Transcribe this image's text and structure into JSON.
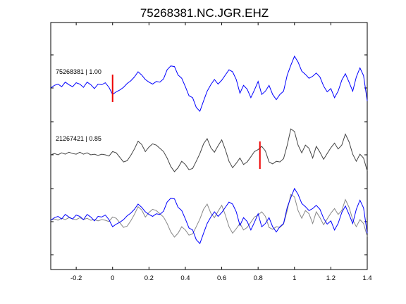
{
  "chart_data": {
    "type": "line",
    "title": "75268381.NC.JGR.EHZ",
    "xlabel": "",
    "ylabel": "",
    "xlim": [
      -0.34,
      1.4
    ],
    "xticks": [
      -0.2,
      0,
      0.2,
      0.4,
      0.6,
      0.8,
      1,
      1.2,
      1.4
    ],
    "xtick_labels": [
      "-0.2",
      "0",
      "0.2",
      "0.4",
      "0.6",
      "0.8",
      "1",
      "1.2",
      "1.4"
    ],
    "grid": false,
    "legend": "none",
    "colors": {
      "primary": "#0000ff",
      "secondary": "#444444",
      "overlay_secondary": "#888888",
      "pick": "#ee0000"
    },
    "traces": [
      {
        "label": "75268381 | 1.00",
        "color": "#0000ff",
        "pick_time": 0.0,
        "x": [
          -0.34,
          -0.32,
          -0.3,
          -0.28,
          -0.26,
          -0.24,
          -0.22,
          -0.2,
          -0.18,
          -0.16,
          -0.14,
          -0.12,
          -0.1,
          -0.08,
          -0.06,
          -0.04,
          -0.02,
          0.0,
          0.02,
          0.04,
          0.06,
          0.08,
          0.1,
          0.12,
          0.14,
          0.16,
          0.18,
          0.2,
          0.22,
          0.24,
          0.26,
          0.28,
          0.3,
          0.32,
          0.34,
          0.36,
          0.38,
          0.4,
          0.42,
          0.44,
          0.46,
          0.48,
          0.5,
          0.52,
          0.54,
          0.56,
          0.58,
          0.6,
          0.62,
          0.64,
          0.66,
          0.68,
          0.7,
          0.72,
          0.74,
          0.76,
          0.78,
          0.8,
          0.82,
          0.84,
          0.86,
          0.88,
          0.9,
          0.92,
          0.94,
          0.96,
          0.98,
          1.0,
          1.02,
          1.04,
          1.06,
          1.08,
          1.1,
          1.12,
          1.14,
          1.16,
          1.18,
          1.2,
          1.22,
          1.24,
          1.26,
          1.28,
          1.3,
          1.32,
          1.34,
          1.36,
          1.38,
          1.4
        ],
        "y": [
          0.0,
          0.08,
          0.12,
          0.04,
          0.18,
          0.1,
          0.04,
          0.16,
          0.12,
          0.02,
          0.18,
          0.1,
          -0.02,
          0.12,
          0.1,
          0.16,
          0.02,
          -0.2,
          -0.12,
          -0.06,
          0.02,
          0.14,
          0.22,
          0.34,
          0.5,
          0.4,
          0.26,
          0.18,
          0.12,
          0.2,
          0.18,
          0.28,
          0.56,
          0.68,
          0.66,
          0.4,
          0.3,
          0.04,
          -0.24,
          -0.3,
          -0.6,
          -0.72,
          -0.4,
          -0.1,
          0.1,
          0.26,
          0.12,
          0.24,
          0.4,
          0.56,
          0.5,
          0.26,
          -0.16,
          0.08,
          -0.04,
          -0.3,
          -0.06,
          0.2,
          -0.2,
          -0.1,
          0.08,
          -0.2,
          -0.36,
          -0.2,
          -0.1,
          0.4,
          0.7,
          0.98,
          0.8,
          0.52,
          0.42,
          0.3,
          0.36,
          0.46,
          0.34,
          0.06,
          -0.12,
          -0.02,
          -0.3,
          -0.1,
          0.24,
          0.44,
          0.18,
          -0.1,
          0.34,
          0.62,
          0.38,
          -0.4
        ]
      },
      {
        "label": "21267421 | 0.85",
        "color": "#444444",
        "pick_time": 0.81,
        "x": [
          -0.34,
          -0.32,
          -0.3,
          -0.28,
          -0.26,
          -0.24,
          -0.22,
          -0.2,
          -0.18,
          -0.16,
          -0.14,
          -0.12,
          -0.1,
          -0.08,
          -0.06,
          -0.04,
          -0.02,
          0.0,
          0.02,
          0.04,
          0.06,
          0.08,
          0.1,
          0.12,
          0.14,
          0.16,
          0.18,
          0.2,
          0.22,
          0.24,
          0.26,
          0.28,
          0.3,
          0.32,
          0.34,
          0.36,
          0.38,
          0.4,
          0.42,
          0.44,
          0.46,
          0.48,
          0.5,
          0.52,
          0.54,
          0.56,
          0.58,
          0.6,
          0.62,
          0.64,
          0.66,
          0.68,
          0.7,
          0.72,
          0.74,
          0.76,
          0.78,
          0.8,
          0.82,
          0.84,
          0.86,
          0.88,
          0.9,
          0.92,
          0.94,
          0.96,
          0.98,
          1.0,
          1.02,
          1.04,
          1.06,
          1.08,
          1.1,
          1.12,
          1.14,
          1.16,
          1.18,
          1.2,
          1.22,
          1.24,
          1.26,
          1.28,
          1.3,
          1.32,
          1.34,
          1.36,
          1.38,
          1.4
        ],
        "y": [
          0.0,
          0.04,
          0.0,
          0.06,
          0.02,
          0.08,
          0.04,
          0.02,
          0.08,
          0.02,
          0.06,
          0.0,
          0.02,
          -0.02,
          0.02,
          0.0,
          -0.04,
          0.1,
          0.06,
          -0.08,
          -0.22,
          -0.18,
          -0.02,
          0.18,
          0.42,
          0.32,
          0.1,
          0.24,
          0.34,
          0.3,
          0.2,
          0.1,
          -0.1,
          -0.36,
          -0.52,
          -0.4,
          -0.2,
          -0.3,
          -0.46,
          -0.42,
          -0.2,
          0.04,
          0.34,
          0.5,
          0.22,
          0.08,
          0.28,
          0.46,
          0.16,
          -0.2,
          -0.4,
          -0.26,
          -0.1,
          -0.3,
          -0.22,
          -0.06,
          0.1,
          0.16,
          0.26,
          0.12,
          -0.22,
          -0.28,
          -0.2,
          -0.22,
          -0.12,
          0.3,
          0.8,
          0.72,
          0.3,
          0.06,
          0.3,
          0.2,
          -0.1,
          0.26,
          0.08,
          -0.14,
          0.04,
          0.22,
          0.36,
          0.18,
          0.3,
          0.64,
          0.4,
          0.02,
          -0.2,
          0.02,
          -0.1,
          -0.5
        ]
      },
      {
        "label": "",
        "color": "#0000ff",
        "overlay_of": [
          0,
          1
        ],
        "note_source": "overlay of both traces"
      }
    ]
  }
}
